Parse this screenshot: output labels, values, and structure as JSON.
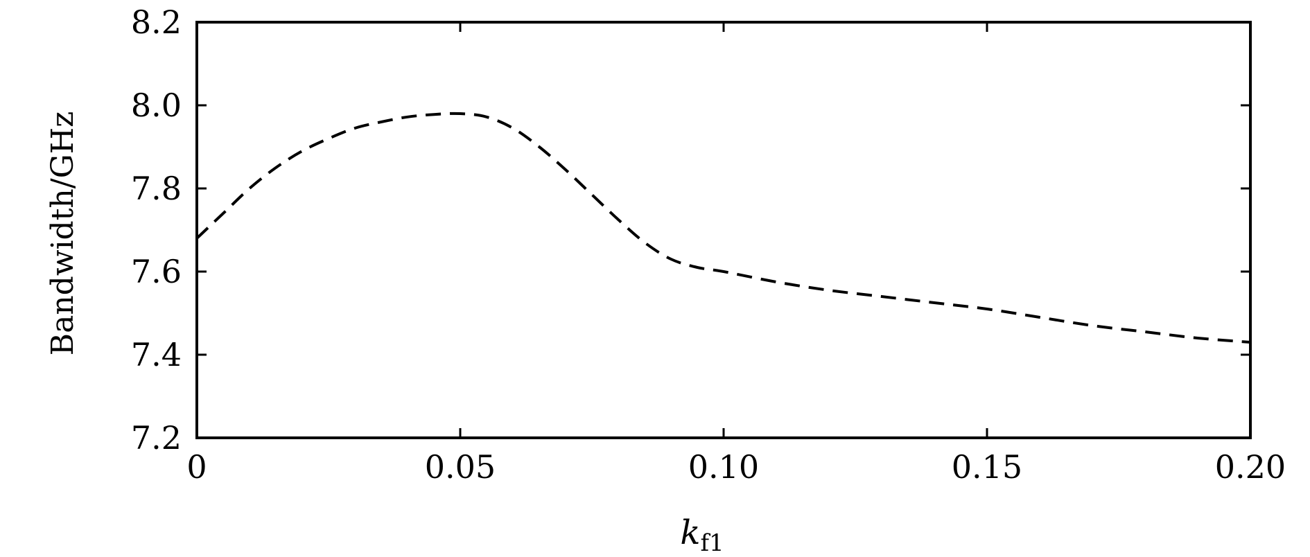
{
  "chart_data": {
    "type": "line",
    "title": "",
    "xlabel": {
      "main": "k",
      "sub": "f1"
    },
    "ylabel": "Bandwidth/GHz",
    "xlim": [
      0,
      0.2
    ],
    "ylim": [
      7.2,
      8.2
    ],
    "x_ticks": [
      "0",
      "0.05",
      "0.10",
      "0.15",
      "0.20"
    ],
    "y_ticks": [
      "7.2",
      "7.4",
      "7.6",
      "7.8",
      "8.0",
      "8.2"
    ],
    "grid": false,
    "legend": "none",
    "series": [
      {
        "line_style": "dashed",
        "color": "#000000",
        "x": [
          0,
          0.005,
          0.01,
          0.015,
          0.02,
          0.025,
          0.03,
          0.035,
          0.04,
          0.045,
          0.05,
          0.055,
          0.06,
          0.065,
          0.07,
          0.075,
          0.08,
          0.085,
          0.09,
          0.095,
          0.1,
          0.11,
          0.12,
          0.13,
          0.14,
          0.15,
          0.16,
          0.17,
          0.18,
          0.19,
          0.2
        ],
        "y": [
          7.68,
          7.74,
          7.8,
          7.85,
          7.89,
          7.92,
          7.945,
          7.96,
          7.972,
          7.978,
          7.98,
          7.972,
          7.945,
          7.9,
          7.845,
          7.785,
          7.725,
          7.67,
          7.63,
          7.61,
          7.6,
          7.575,
          7.555,
          7.54,
          7.525,
          7.51,
          7.49,
          7.47,
          7.455,
          7.44,
          7.43
        ]
      }
    ]
  }
}
